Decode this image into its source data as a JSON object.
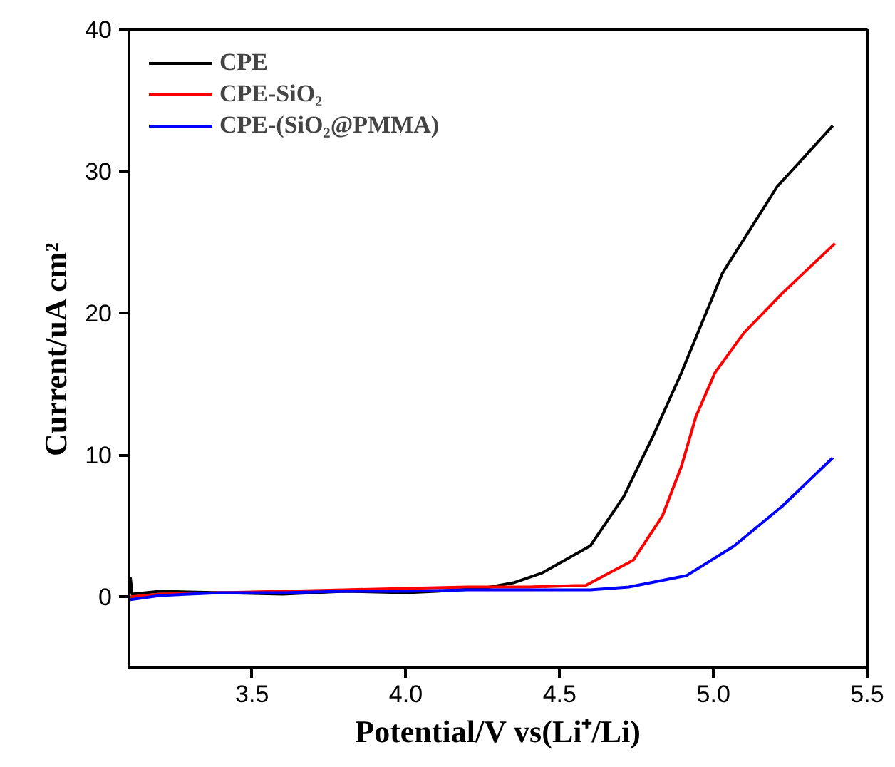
{
  "chart_data": {
    "type": "line",
    "xlabel": "Potential/V vs(Li⁺/Li)",
    "ylabel": "Current/uA cm²",
    "xlim": [
      3.1,
      5.5
    ],
    "ylim": [
      -5,
      40
    ],
    "xticks": [
      3.5,
      {
        "value": 4,
        "label": "4.0"
      },
      4.5,
      {
        "value": 5,
        "label": "5.0"
      },
      5.5
    ],
    "yticks": [
      0,
      10,
      20,
      30,
      40
    ],
    "grid": false,
    "legend": "top left",
    "marker": "none",
    "line_style": "solid",
    "series": [
      {
        "name": "CPE",
        "color": "#000000",
        "x": [
          3.1,
          3.105,
          3.11,
          3.2,
          3.4,
          3.6,
          3.8,
          4.0,
          4.1,
          4.25,
          4.35,
          4.444,
          4.6,
          4.709,
          4.803,
          4.896,
          5.029,
          5.207,
          5.388
        ],
        "values": [
          0.2,
          1.3,
          0.2,
          0.4,
          0.3,
          0.2,
          0.4,
          0.3,
          0.4,
          0.6,
          1.0,
          1.7,
          3.6,
          7.1,
          11.3,
          15.8,
          22.8,
          28.9,
          33.2
        ]
      },
      {
        "name": "CPE-SiO₂",
        "color": "#ff0000",
        "x": [
          3.1,
          3.2,
          3.4,
          3.6,
          3.8,
          4.0,
          4.2,
          4.4,
          4.55,
          4.584,
          4.74,
          4.834,
          4.896,
          4.943,
          5.005,
          5.099,
          5.224,
          5.395
        ],
        "values": [
          0.0,
          0.2,
          0.3,
          0.4,
          0.5,
          0.6,
          0.7,
          0.7,
          0.8,
          0.8,
          2.6,
          5.7,
          9.2,
          12.7,
          15.8,
          18.6,
          21.4,
          24.9
        ]
      },
      {
        "name": "CPE-(SiO₂@PMMA)",
        "color": "#0000ff",
        "x": [
          3.1,
          3.2,
          3.4,
          3.6,
          3.8,
          4.0,
          4.2,
          4.4,
          4.6,
          4.725,
          4.912,
          5.068,
          5.224,
          5.388
        ],
        "values": [
          -0.2,
          0.1,
          0.3,
          0.3,
          0.4,
          0.4,
          0.5,
          0.5,
          0.5,
          0.7,
          1.5,
          3.6,
          6.4,
          9.8
        ]
      }
    ]
  }
}
